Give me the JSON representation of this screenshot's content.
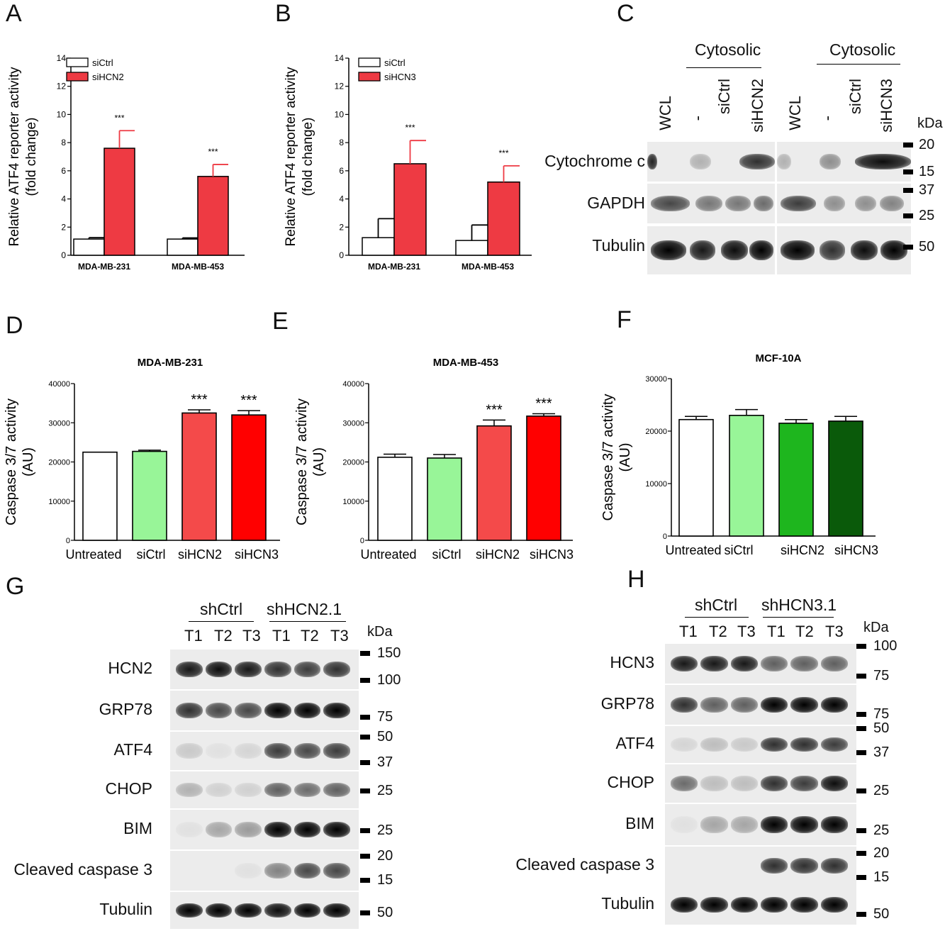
{
  "panel_letters": [
    "A",
    "B",
    "C",
    "D",
    "E",
    "F",
    "G",
    "H"
  ],
  "chart_data": [
    {
      "id": "A",
      "type": "bar",
      "ylabel": "Relative ATF4 reporter activity (fold change)",
      "categories": [
        "MDA-MB-231",
        "MDA-MB-453"
      ],
      "series": [
        {
          "name": "siCtrl",
          "color": "#ffffff",
          "values": [
            1.15,
            1.15
          ],
          "errors": [
            0.1,
            0.08
          ]
        },
        {
          "name": "siHCN2",
          "color": "#ee3a43",
          "values": [
            7.6,
            5.6
          ],
          "errors": [
            1.25,
            0.85
          ]
        }
      ],
      "significance": [
        "***",
        "***"
      ],
      "ylim": [
        0,
        14
      ],
      "yticks": [
        0,
        2,
        4,
        6,
        8,
        10,
        12,
        14
      ],
      "legend": "top-left"
    },
    {
      "id": "B",
      "type": "bar",
      "ylabel": "Relative ATF4 reporter activity (fold change)",
      "categories": [
        "MDA-MB-231",
        "MDA-MB-453"
      ],
      "series": [
        {
          "name": "siCtrl",
          "color": "#ffffff",
          "values": [
            1.25,
            1.05
          ],
          "errors": [
            1.35,
            1.1
          ]
        },
        {
          "name": "siHCN3",
          "color": "#ee3a43",
          "values": [
            6.5,
            5.2
          ],
          "errors": [
            1.65,
            1.15
          ]
        }
      ],
      "significance": [
        "***",
        "***"
      ],
      "ylim": [
        0,
        14
      ],
      "yticks": [
        0,
        2,
        4,
        6,
        8,
        10,
        12,
        14
      ],
      "legend": "top-left"
    },
    {
      "id": "D",
      "type": "bar",
      "title": "MDA-MB-231",
      "ylabel": "Caspase 3/7 activity (AU)",
      "categories": [
        "Untreated",
        "siCtrl",
        "siHCN2",
        "siHCN3"
      ],
      "values": [
        22500,
        22700,
        32500,
        32000
      ],
      "errors": [
        0,
        300,
        800,
        1100
      ],
      "colors": [
        "#ffffff",
        "#98f598",
        "#f44a4a",
        "#ff0000"
      ],
      "significance": [
        "",
        "",
        "***",
        "***"
      ],
      "ylim": [
        0,
        40000
      ],
      "yticks": [
        0,
        10000,
        20000,
        30000,
        40000
      ]
    },
    {
      "id": "E",
      "type": "bar",
      "title": "MDA-MB-453",
      "ylabel": "Caspase 3/7 activity (AU)",
      "categories": [
        "Untreated",
        "siCtrl",
        "siHCN2",
        "siHCN3"
      ],
      "values": [
        21200,
        21000,
        29200,
        31700
      ],
      "errors": [
        800,
        900,
        1500,
        600
      ],
      "colors": [
        "#ffffff",
        "#98f598",
        "#f44a4a",
        "#ff0000"
      ],
      "significance": [
        "",
        "",
        "***",
        "***"
      ],
      "ylim": [
        0,
        40000
      ],
      "yticks": [
        0,
        10000,
        20000,
        30000,
        40000
      ]
    },
    {
      "id": "F",
      "type": "bar",
      "title": "MCF-10A",
      "ylabel": "Caspase 3/7 activity (AU)",
      "categories": [
        "Untreated",
        "siCtrl",
        "siHCN2",
        "siHCN3"
      ],
      "values": [
        22200,
        23000,
        21500,
        21900
      ],
      "errors": [
        600,
        1100,
        700,
        900
      ],
      "colors": [
        "#ffffff",
        "#98f598",
        "#1eb61e",
        "#0a5a0a"
      ],
      "significance": [
        "",
        "",
        "",
        ""
      ],
      "ylim": [
        0,
        30000
      ],
      "yticks": [
        0,
        10000,
        20000,
        30000
      ]
    }
  ],
  "blot_c": {
    "group_labels": [
      "Cytosolic",
      "Cytosolic"
    ],
    "lanes": [
      "WCL",
      "-",
      "siCtrl",
      "siHCN2",
      "WCL",
      "-",
      "siCtrl",
      "siHCN3"
    ],
    "kda_title": "kDa",
    "rows": [
      {
        "label": "Cytochrome c",
        "markers": [
          "20",
          "15"
        ]
      },
      {
        "label": "GAPDH",
        "markers": [
          "37",
          "25"
        ]
      },
      {
        "label": "Tubulin",
        "markers": [
          "50"
        ]
      }
    ]
  },
  "blot_g": {
    "group_labels": [
      "shCtrl",
      "shHCN2.1"
    ],
    "lanes": [
      "T1",
      "T2",
      "T3",
      "T1",
      "T2",
      "T3"
    ],
    "kda_title": "kDa",
    "rows": [
      {
        "label": "HCN2",
        "markers": [
          "150",
          "100"
        ]
      },
      {
        "label": "GRP78",
        "markers": [
          "75"
        ]
      },
      {
        "label": "ATF4",
        "markers": [
          "50",
          "37"
        ]
      },
      {
        "label": "CHOP",
        "markers": [
          "25"
        ]
      },
      {
        "label": "BIM",
        "markers": [
          "25"
        ]
      },
      {
        "label": "Cleaved caspase 3",
        "markers": [
          "20",
          "15"
        ]
      },
      {
        "label": "Tubulin",
        "markers": [
          "50"
        ]
      }
    ]
  },
  "blot_h": {
    "group_labels": [
      "shCtrl",
      "shHCN3.1"
    ],
    "lanes": [
      "T1",
      "T2",
      "T3",
      "T1",
      "T2",
      "T3"
    ],
    "kda_title": "kDa",
    "rows": [
      {
        "label": "HCN3",
        "markers": [
          "100",
          "75"
        ]
      },
      {
        "label": "GRP78",
        "markers": [
          "75"
        ]
      },
      {
        "label": "ATF4",
        "markers": [
          "50",
          "37"
        ]
      },
      {
        "label": "CHOP",
        "markers": [
          "25"
        ]
      },
      {
        "label": "BIM",
        "markers": [
          "25"
        ]
      },
      {
        "label": "Cleaved caspase 3",
        "markers": [
          "20",
          "15"
        ]
      },
      {
        "label": "Tubulin",
        "markers": [
          "50"
        ]
      }
    ]
  }
}
